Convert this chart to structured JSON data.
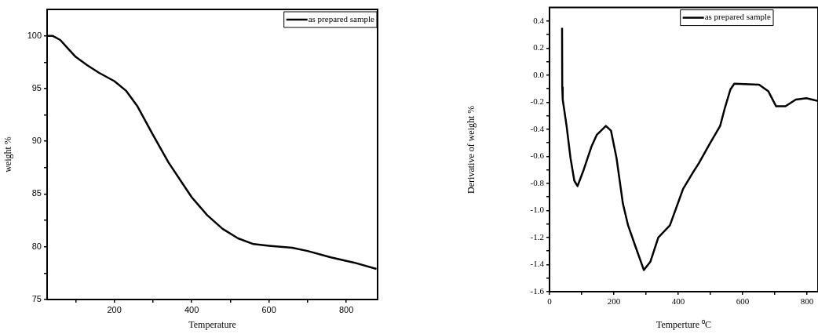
{
  "chart_data": [
    {
      "type": "line",
      "xlabel": "Temperature",
      "ylabel": "weight %",
      "legend": "top right",
      "xlim": [
        26,
        881
      ],
      "ylim": [
        75,
        102.5
      ],
      "xticks": [
        {
          "value": 100,
          "label": null
        },
        200,
        {
          "value": 300,
          "label": null
        },
        400,
        {
          "value": 500,
          "label": null
        },
        600,
        {
          "value": 700,
          "label": null
        },
        800
      ],
      "yticks": [
        75,
        {
          "value": 77.5,
          "label": null
        },
        80,
        {
          "value": 82.5,
          "label": null
        },
        85,
        {
          "value": 87.5,
          "label": null
        },
        90,
        {
          "value": 92.5,
          "label": null
        },
        95,
        {
          "value": 97.5,
          "label": null
        },
        100
      ],
      "series": [
        {
          "name": "as prepared sample",
          "color": "#000000",
          "x": [
            26,
            40,
            60,
            80,
            100,
            130,
            160,
            200,
            230,
            260,
            300,
            340,
            380,
            400,
            440,
            480,
            520,
            560,
            600,
            660,
            700,
            760,
            820,
            878
          ],
          "values": [
            100,
            100,
            99.6,
            98.8,
            98,
            97.2,
            96.5,
            95.7,
            94.8,
            93.3,
            90.6,
            88,
            85.8,
            84.7,
            83,
            81.7,
            80.8,
            80.25,
            80.1,
            79.9,
            79.6,
            79,
            78.5,
            77.9
          ]
        }
      ]
    },
    {
      "type": "line",
      "xlabel": "Temperture ⁰C",
      "ylabel": "Derivative of weight %",
      "legend": "top right",
      "xlim": [
        0,
        834
      ],
      "ylim": [
        -1.6,
        0.5
      ],
      "xticks": [
        0,
        {
          "value": 100,
          "label": null
        },
        200,
        {
          "value": 300,
          "label": null
        },
        400,
        {
          "value": 500,
          "label": null
        },
        600,
        {
          "value": 700,
          "label": null
        },
        800
      ],
      "yticks": [
        {
          "value": -1.6,
          "label": "-1.6"
        },
        {
          "value": -1.5,
          "label": null
        },
        {
          "value": -1.4,
          "label": "-1.4"
        },
        {
          "value": -1.3,
          "label": null
        },
        {
          "value": -1.2,
          "label": "-1.2"
        },
        {
          "value": -1.1,
          "label": null
        },
        {
          "value": -1.0,
          "label": "-1.0"
        },
        {
          "value": -0.9,
          "label": null
        },
        {
          "value": -0.8,
          "label": "-0.8"
        },
        {
          "value": -0.7,
          "label": null
        },
        {
          "value": -0.6,
          "label": "-0.6"
        },
        {
          "value": -0.5,
          "label": null
        },
        {
          "value": -0.4,
          "label": "-0.4"
        },
        {
          "value": -0.3,
          "label": null
        },
        {
          "value": -0.2,
          "label": "-0.2"
        },
        {
          "value": -0.1,
          "label": null
        },
        {
          "value": 0,
          "label": "0.0"
        },
        {
          "value": 0.1,
          "label": null
        },
        {
          "value": 0.2,
          "label": "0.2"
        },
        {
          "value": 0.3,
          "label": null
        },
        {
          "value": 0.4,
          "label": "0.4"
        }
      ],
      "series": [
        {
          "name": "as prepared sample",
          "color": "#000000",
          "x": [
            39,
            39.5,
            41,
            53,
            65,
            77,
            87,
            106,
            130,
            147,
            175,
            191,
            208,
            228,
            244,
            269,
            293,
            313,
            338,
            374,
            415,
            448,
            464,
            497,
            530,
            545,
            562,
            574,
            651,
            680,
            704,
            733,
            765,
            798,
            834
          ],
          "values": [
            0.35,
            -0.09,
            -0.18,
            -0.375,
            -0.61,
            -0.78,
            -0.82,
            -0.7,
            -0.53,
            -0.44,
            -0.375,
            -0.41,
            -0.61,
            -0.95,
            -1.11,
            -1.28,
            -1.44,
            -1.38,
            -1.2,
            -1.11,
            -0.84,
            -0.71,
            -0.65,
            -0.51,
            -0.375,
            -0.24,
            -0.105,
            -0.063,
            -0.07,
            -0.12,
            -0.23,
            -0.23,
            -0.18,
            -0.17,
            -0.19
          ]
        }
      ]
    }
  ]
}
